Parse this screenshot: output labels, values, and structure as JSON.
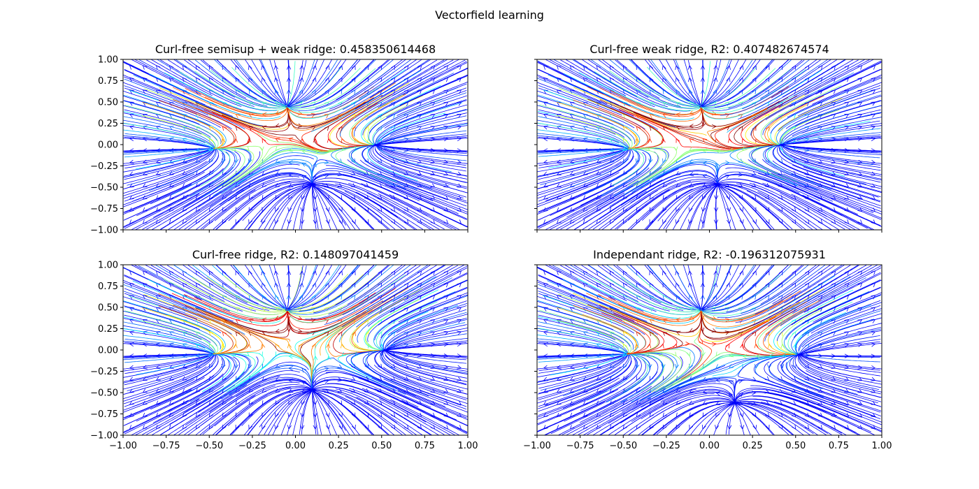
{
  "figure": {
    "suptitle": "Vectorfield learning"
  },
  "chart_data": [
    {
      "type": "streamplot",
      "title": "Curl-free semisup + weak ridge: 0.458350614468",
      "xlim": [
        -1.0,
        1.0
      ],
      "ylim": [
        -1.0,
        1.0
      ],
      "xticks": [
        "",
        "",
        "",
        "",
        "",
        "",
        "",
        "",
        ""
      ],
      "yticks": [
        "1.00",
        "0.75",
        "0.50",
        "0.25",
        "0.00",
        "−0.25",
        "−0.50",
        "−0.75",
        "−1.00"
      ],
      "colormap": "jet",
      "sources": [
        [
          -0.05,
          0.48
        ],
        [
          -0.5,
          -0.05
        ],
        [
          0.1,
          -0.5
        ],
        [
          0.5,
          0.0
        ]
      ],
      "peaks": [
        [
          -0.3,
          0.2
        ],
        [
          0.2,
          0.2
        ]
      ]
    },
    {
      "type": "streamplot",
      "title": "Curl-free weak ridge, R2: 0.407482674574",
      "xlim": [
        -1.0,
        1.0
      ],
      "ylim": [
        -1.0,
        1.0
      ],
      "xticks": [
        "",
        "",
        "",
        "",
        "",
        "",
        "",
        "",
        ""
      ],
      "yticks": [
        "",
        "",
        "",
        "",
        "",
        "",
        "",
        "",
        ""
      ],
      "colormap": "jet",
      "sources": [
        [
          -0.05,
          0.48
        ],
        [
          -0.5,
          -0.05
        ],
        [
          0.05,
          -0.5
        ],
        [
          0.45,
          0.0
        ]
      ],
      "peaks": [
        [
          -0.3,
          0.2
        ],
        [
          0.2,
          0.2
        ]
      ]
    },
    {
      "type": "streamplot",
      "title": "Curl-free ridge, R2: 0.148097041459",
      "xlim": [
        -1.0,
        1.0
      ],
      "ylim": [
        -1.0,
        1.0
      ],
      "xticks": [
        "−1.00",
        "−0.75",
        "−0.50",
        "−0.25",
        "0.00",
        "0.25",
        "0.50",
        "0.75",
        "1.00"
      ],
      "yticks": [
        "1.00",
        "0.75",
        "0.50",
        "0.25",
        "0.00",
        "−0.25",
        "−0.50",
        "−0.75",
        "−1.00"
      ],
      "colormap": "jet",
      "sources": [
        [
          -0.05,
          0.5
        ],
        [
          -0.5,
          -0.05
        ],
        [
          0.1,
          -0.5
        ],
        [
          0.55,
          0.0
        ]
      ],
      "peaks": [
        [
          -0.3,
          0.25
        ],
        [
          0.2,
          0.25
        ]
      ]
    },
    {
      "type": "streamplot",
      "title": "Independant ridge, R2: -0.196312075931",
      "xlim": [
        -1.0,
        1.0
      ],
      "ylim": [
        -1.0,
        1.0
      ],
      "xticks": [
        "−1.00",
        "−0.75",
        "−0.50",
        "−0.25",
        "0.00",
        "0.25",
        "0.50",
        "0.75",
        "1.00"
      ],
      "yticks": [
        "",
        "",
        "",
        "",
        "",
        "",
        "",
        "",
        ""
      ],
      "colormap": "jet",
      "sources": [
        [
          -0.05,
          0.5
        ],
        [
          -0.5,
          -0.05
        ],
        [
          0.15,
          -0.65
        ],
        [
          0.55,
          -0.05
        ]
      ],
      "peaks": [
        [
          -0.3,
          0.2
        ],
        [
          0.2,
          0.2
        ]
      ]
    }
  ]
}
